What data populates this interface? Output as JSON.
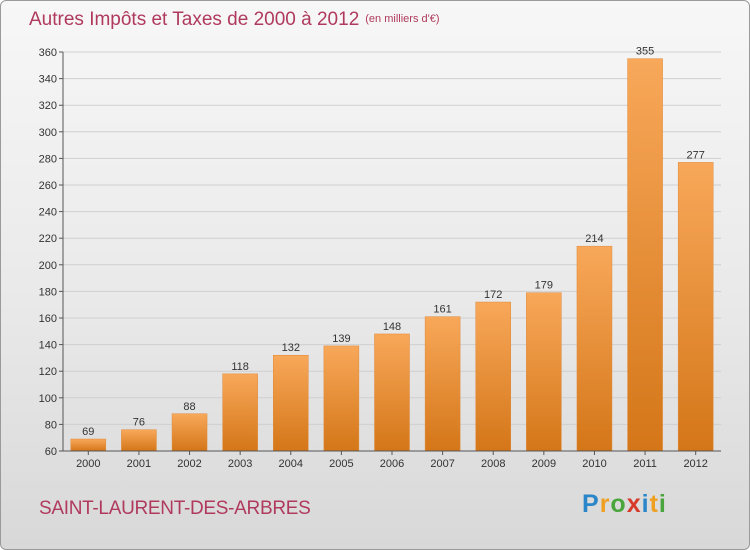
{
  "title": "Autres Impôts et Taxes de 2000 à 2012",
  "unit": "(en milliers d'€)",
  "commune": "SAINT-LAURENT-DES-ARBRES",
  "logo": {
    "letters": [
      "P",
      "r",
      "o",
      "x",
      "i",
      "t",
      "i"
    ],
    "colors": [
      "#2a86c8",
      "#f0a020",
      "#4aa63c",
      "#d83a2a",
      "#2a86c8",
      "#f0a020",
      "#4aa63c"
    ]
  },
  "colors": {
    "bar_light": "#f8a85a",
    "bar_dark": "#d47618",
    "grid": "#cfcfcf",
    "axis": "#555555",
    "text": "#333333"
  },
  "chart_data": {
    "type": "bar",
    "title": "Autres Impôts et Taxes de 2000 à 2012",
    "subtitle": "(en milliers d'€)",
    "categories": [
      "2000",
      "2001",
      "2002",
      "2003",
      "2004",
      "2005",
      "2006",
      "2007",
      "2008",
      "2009",
      "2010",
      "2011",
      "2012"
    ],
    "values": [
      69,
      76,
      88,
      118,
      132,
      139,
      148,
      161,
      172,
      179,
      214,
      355,
      277
    ],
    "xlabel": "",
    "ylabel": "",
    "ylim": [
      60,
      360
    ],
    "yticks": [
      60,
      80,
      100,
      120,
      140,
      160,
      180,
      200,
      220,
      240,
      260,
      280,
      300,
      320,
      340,
      360
    ],
    "grid": true,
    "data_labels": true
  }
}
